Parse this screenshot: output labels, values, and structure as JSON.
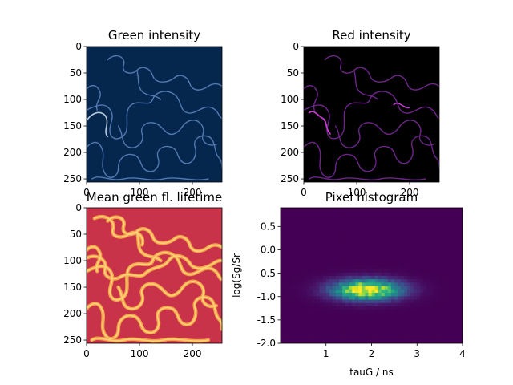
{
  "figure": {
    "type": "2x2 subplot grid"
  },
  "chart_data": [
    {
      "type": "heatmap",
      "title": "Green intensity",
      "colormap": "dark navy to light blue (Blues_r-like)",
      "xlim": [
        0,
        256
      ],
      "ylim": [
        256,
        0
      ],
      "xticks": [
        0,
        100,
        200
      ],
      "yticks": [
        0,
        50,
        100,
        150,
        200,
        250
      ],
      "content": "bright cell-boundary contours on dark navy background"
    },
    {
      "type": "heatmap",
      "title": "Red intensity",
      "colormap": "black to magenta",
      "xlim": [
        0,
        256
      ],
      "ylim": [
        256,
        0
      ],
      "xticks": [
        0,
        100,
        200
      ],
      "yticks": [
        0,
        50,
        100,
        150,
        200,
        250
      ],
      "content": "faint purple cell-boundary contours on black background"
    },
    {
      "type": "heatmap",
      "title": "Mean green fl. lifetime",
      "colormap": "red background, yellow/orange contours",
      "xlim": [
        0,
        256
      ],
      "ylim": [
        256,
        0
      ],
      "xticks": [
        0,
        100,
        200
      ],
      "yticks": [
        0,
        50,
        100,
        150,
        200,
        250
      ],
      "content": "orange-yellow jigsaw-shaped cell outlines on crimson background"
    },
    {
      "type": "heatmap",
      "title": "Pixel histogram",
      "xlabel": "tauG / ns",
      "ylabel": "log(Sg/Sr",
      "colormap": "viridis",
      "xlim": [
        0,
        4
      ],
      "ylim": [
        -2.0,
        0.9
      ],
      "xticks": [
        1,
        2,
        3,
        4
      ],
      "yticks": [
        0.5,
        0.0,
        -0.5,
        -1.0,
        -1.5,
        -2.0
      ],
      "peak": {
        "x": 1.9,
        "y": -0.85
      },
      "spread": {
        "x_sigma": 0.45,
        "y_sigma": 0.13
      }
    }
  ]
}
